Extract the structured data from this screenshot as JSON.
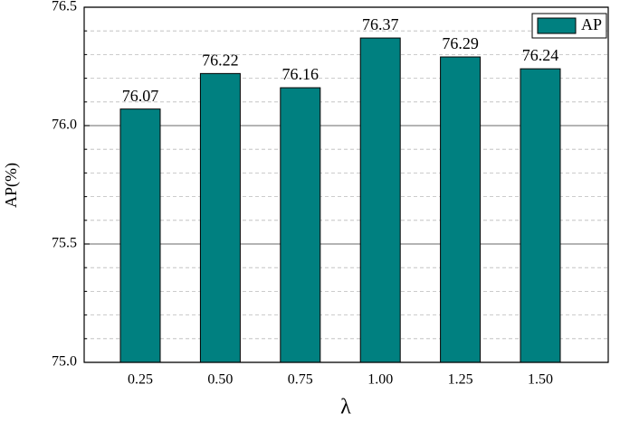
{
  "chart_data": {
    "type": "bar",
    "x_label": "λ",
    "y_label": "AP(%)",
    "categories": [
      "0.25",
      "0.50",
      "0.75",
      "1.00",
      "1.25",
      "1.50"
    ],
    "series": [
      {
        "name": "AP",
        "color": "#008080",
        "values": [
          76.07,
          76.22,
          76.16,
          76.37,
          76.29,
          76.24
        ]
      }
    ],
    "ylim": [
      75.0,
      76.5
    ],
    "yticks": [
      {
        "value": 75.0,
        "label": "75.0"
      },
      {
        "value": 75.5,
        "label": "75.5"
      },
      {
        "value": 76.0,
        "label": "76.0"
      },
      {
        "value": 76.5,
        "label": "76.5"
      }
    ],
    "minor_yticks": [
      75.1,
      75.2,
      75.3,
      75.4,
      75.6,
      75.7,
      75.8,
      75.9,
      76.1,
      76.2,
      76.3,
      76.4
    ],
    "grid": true,
    "legend": "upper right"
  }
}
